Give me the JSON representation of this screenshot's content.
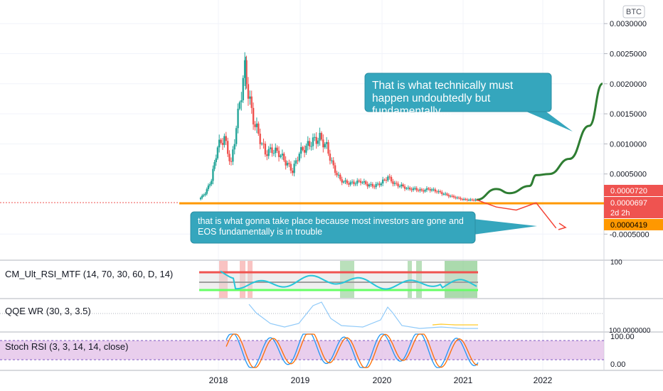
{
  "currency_badge": "BTC",
  "price_axis": {
    "ticks": [
      "0.0030000",
      "0.0025000",
      "0.0020000",
      "0.0015000",
      "0.0010000",
      "0.0005000",
      "-0.0005000"
    ],
    "labels": {
      "last": {
        "text": "0.0000720",
        "color": "#ef5350"
      },
      "current": {
        "text": "0.0000697",
        "color": "#ef5350"
      },
      "countdown": {
        "text": "2d 2h",
        "color": "#ef5350"
      },
      "support": {
        "text": "0.0000419",
        "color": "#ff9800"
      }
    }
  },
  "time_axis": {
    "labels": [
      "2018",
      "2019",
      "2020",
      "2021",
      "2022"
    ]
  },
  "panes": {
    "rsi_mtf": {
      "title": "CM_Ult_RSI_MTF (14, 70, 30, 60, D, 14)",
      "axis_label": "100"
    },
    "qqe": {
      "title": "QQE WR (30, 3, 3.5)",
      "axis_label": "100.0000000"
    },
    "stoch": {
      "title": "Stoch RSI (3, 3, 14, 14, close)",
      "axis_top": "100.00",
      "axis_bottom": "0.00"
    }
  },
  "annotations": {
    "top_callout": "That is what technically must happen undoubtedly but fundamentally....",
    "bottom_callout": "that is what gonna take place because most investors are gone and EOS fundamentally is in trouble"
  },
  "colors": {
    "bull": "#26a69a",
    "bear": "#ef5350",
    "callout": "#35a6bd",
    "orange": "#ff9800",
    "green_arrow": "#2e7d32",
    "red_arrow": "#f44336",
    "stoch_fill": "#e1bee7"
  },
  "chart_data": {
    "type": "candlestick",
    "symbol_quote": "BTC",
    "x_range": [
      "2017-09",
      "2022-11"
    ],
    "y_range": [
      -0.0006,
      0.0032
    ],
    "date_ticks": [
      "2018",
      "2019",
      "2020",
      "2021",
      "2022"
    ],
    "price_ticks": [
      0.003,
      0.0025,
      0.002,
      0.0015,
      0.001,
      0.0005,
      -0.0005
    ],
    "close_series": [
      {
        "t": "2017-10",
        "v": 8e-05
      },
      {
        "t": "2017-11",
        "v": 0.00018
      },
      {
        "t": "2017-12",
        "v": 0.0004
      },
      {
        "t": "2018-01",
        "v": 0.00095
      },
      {
        "t": "2018-02",
        "v": 0.0011
      },
      {
        "t": "2018-03",
        "v": 0.00065
      },
      {
        "t": "2018-04",
        "v": 0.0015
      },
      {
        "t": "2018-05",
        "v": 0.00225
      },
      {
        "t": "2018-06",
        "v": 0.0015
      },
      {
        "t": "2018-07",
        "v": 0.00115
      },
      {
        "t": "2018-08",
        "v": 0.00085
      },
      {
        "t": "2018-09",
        "v": 0.0009
      },
      {
        "t": "2018-10",
        "v": 0.00085
      },
      {
        "t": "2018-11",
        "v": 0.0007
      },
      {
        "t": "2018-12",
        "v": 0.00055
      },
      {
        "t": "2019-01",
        "v": 0.00085
      },
      {
        "t": "2019-02",
        "v": 0.00095
      },
      {
        "t": "2019-03",
        "v": 0.00105
      },
      {
        "t": "2019-04",
        "v": 0.0011
      },
      {
        "t": "2019-05",
        "v": 0.00095
      },
      {
        "t": "2019-06",
        "v": 0.0006
      },
      {
        "t": "2019-07",
        "v": 0.0004
      },
      {
        "t": "2019-08",
        "v": 0.00035
      },
      {
        "t": "2019-09",
        "v": 0.00035
      },
      {
        "t": "2019-10",
        "v": 0.00038
      },
      {
        "t": "2019-11",
        "v": 0.00032
      },
      {
        "t": "2019-12",
        "v": 0.0003
      },
      {
        "t": "2020-01",
        "v": 0.00035
      },
      {
        "t": "2020-02",
        "v": 0.00045
      },
      {
        "t": "2020-03",
        "v": 0.00033
      },
      {
        "t": "2020-04",
        "v": 0.0003
      },
      {
        "t": "2020-05",
        "v": 0.00025
      },
      {
        "t": "2020-06",
        "v": 0.00025
      },
      {
        "t": "2020-07",
        "v": 0.00022
      },
      {
        "t": "2020-08",
        "v": 0.00025
      },
      {
        "t": "2020-09",
        "v": 0.00022
      },
      {
        "t": "2020-10",
        "v": 0.00018
      },
      {
        "t": "2020-11",
        "v": 0.00014
      },
      {
        "t": "2020-12",
        "v": 0.00011
      },
      {
        "t": "2021-01",
        "v": 8e-05
      },
      {
        "t": "2021-02",
        "v": 7e-05
      },
      {
        "t": "2021-03",
        "v": 7e-05
      }
    ],
    "levels": [
      {
        "name": "support",
        "value": 4.19e-05,
        "color": "#ff9800"
      }
    ],
    "projection_bullish": [
      {
        "t": "2021-03",
        "v": 7e-05
      },
      {
        "t": "2021-06",
        "v": 0.00025
      },
      {
        "t": "2021-08",
        "v": 0.00018
      },
      {
        "t": "2021-11",
        "v": 0.0003
      },
      {
        "t": "2021-12",
        "v": 0.00048
      },
      {
        "t": "2022-02",
        "v": 0.0005
      },
      {
        "t": "2022-05",
        "v": 0.00075
      },
      {
        "t": "2022-08",
        "v": 0.0013
      },
      {
        "t": "2022-10",
        "v": 0.002
      }
    ],
    "projection_bearish": [
      {
        "t": "2021-03",
        "v": 7e-05
      },
      {
        "t": "2021-06",
        "v": -5e-05
      },
      {
        "t": "2021-09",
        "v": -0.0001
      },
      {
        "t": "2021-12",
        "v": 2e-05
      },
      {
        "t": "2022-03",
        "v": -0.0004
      }
    ],
    "indicators": {
      "rsi_mtf": {
        "upper": 70,
        "lower": 30,
        "mid": 50
      },
      "stoch": {
        "upper": 80,
        "lower": 20
      }
    }
  }
}
